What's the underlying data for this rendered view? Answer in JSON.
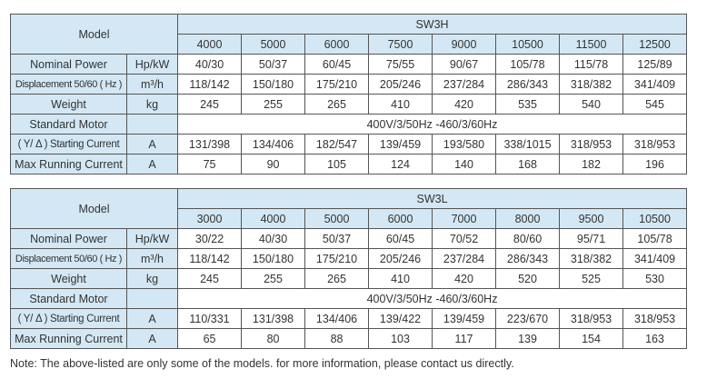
{
  "tables": [
    {
      "series": "SW3H",
      "model_label": "Model",
      "models": [
        "4000",
        "5000",
        "6000",
        "7500",
        "9000",
        "10500",
        "11500",
        "12500"
      ],
      "rows": [
        {
          "label": "Nominal Power",
          "unit": "Hp/kW",
          "values": [
            "40/30",
            "50/37",
            "60/45",
            "75/55",
            "90/67",
            "105/78",
            "115/78",
            "125/89"
          ]
        },
        {
          "label": "Displacement 50/60 ( Hz )",
          "unit": "m³/h",
          "values": [
            "118/142",
            "150/180",
            "175/210",
            "205/246",
            "237/284",
            "286/343",
            "318/382",
            "341/409"
          ]
        },
        {
          "label": "Weight",
          "unit": "kg",
          "values": [
            "245",
            "255",
            "265",
            "410",
            "420",
            "535",
            "540",
            "545"
          ]
        },
        {
          "label": "Standard Motor",
          "unit": "",
          "merged": "400V/3/50Hz -460/3/60Hz"
        },
        {
          "label": "( Y/ Δ ) Starting Current",
          "unit": "A",
          "values": [
            "131/398",
            "134/406",
            "182/547",
            "139/459",
            "193/580",
            "338/1015",
            "318/953",
            "318/953"
          ]
        },
        {
          "label": "Max Running Current",
          "unit": "A",
          "values": [
            "75",
            "90",
            "105",
            "124",
            "140",
            "168",
            "182",
            "196"
          ]
        }
      ]
    },
    {
      "series": "SW3L",
      "model_label": "Model",
      "models": [
        "3000",
        "4000",
        "5000",
        "6000",
        "7000",
        "8000",
        "9500",
        "10500"
      ],
      "rows": [
        {
          "label": "Nominal Power",
          "unit": "Hp/kW",
          "values": [
            "30/22",
            "40/30",
            "50/37",
            "60/45",
            "70/52",
            "80/60",
            "95/71",
            "105/78"
          ]
        },
        {
          "label": "Displacement 50/60 ( Hz )",
          "unit": "m³/h",
          "values": [
            "118/142",
            "150/180",
            "175/210",
            "205/246",
            "237/284",
            "286/343",
            "318/382",
            "341/409"
          ]
        },
        {
          "label": "Weight",
          "unit": "kg",
          "values": [
            "245",
            "255",
            "265",
            "410",
            "420",
            "520",
            "525",
            "530"
          ]
        },
        {
          "label": "Standard Motor",
          "unit": "",
          "merged": "400V/3/50Hz -460/3/60Hz"
        },
        {
          "label": "( Y/ Δ ) Starting Current",
          "unit": "A",
          "values": [
            "110/331",
            "131/398",
            "134/406",
            "139/422",
            "139/459",
            "223/670",
            "318/953",
            "318/953"
          ]
        },
        {
          "label": "Max Running Current",
          "unit": "A",
          "values": [
            "65",
            "80",
            "88",
            "103",
            "117",
            "139",
            "154",
            "163"
          ]
        }
      ]
    }
  ],
  "note": "Note:  The above-listed are only some of the models. for more information, please contact us directly.",
  "colors": {
    "header_bg": "#d3e8f4",
    "border": "#555555",
    "text": "#333333"
  }
}
